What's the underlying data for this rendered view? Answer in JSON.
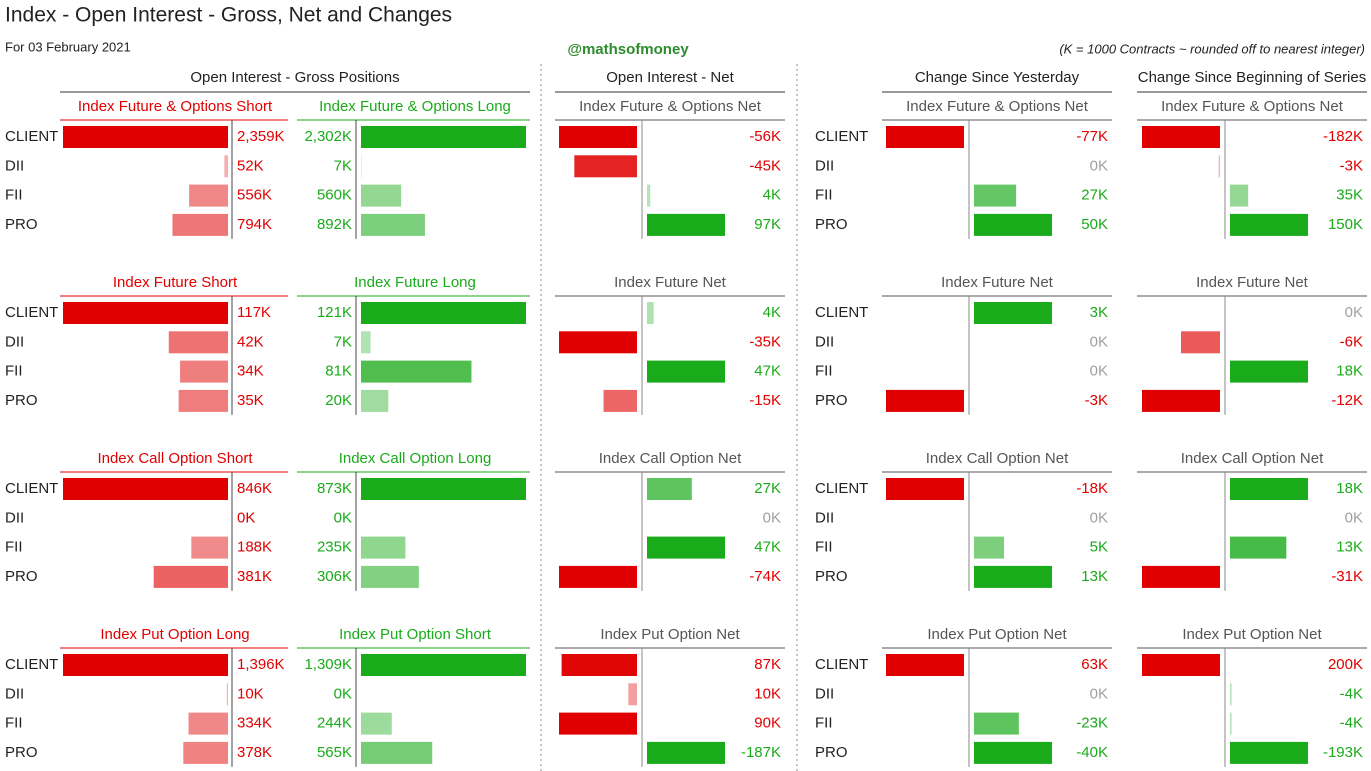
{
  "header": {
    "title": "Index - Open Interest - Gross, Net and Changes",
    "date": "For 03 February 2021",
    "handle": "@mathsofmoney",
    "note": "(K = 1000 Contracts ~ rounded off to nearest integer)"
  },
  "sections": [
    "Open Interest - Gross Positions",
    "Open Interest - Net",
    "Change Since Yesterday",
    "Change Since Beginning of Series"
  ],
  "participants": [
    "CLIENT",
    "DII",
    "FII",
    "PRO"
  ],
  "colors": {
    "negative": "#e00000",
    "positive": "#1aab1a",
    "neutral": "#a0a0a0"
  },
  "groups": [
    {
      "inverted": false,
      "short": {
        "title": "Index Future & Options Short",
        "values": [
          2359,
          52,
          556,
          794
        ],
        "value_labels": [
          "2,359K",
          "52K",
          "556K",
          "794K"
        ]
      },
      "long": {
        "title": "Index Future & Options Long",
        "values": [
          2302,
          7,
          560,
          892
        ],
        "value_labels": [
          "2,302K",
          "7K",
          "560K",
          "892K"
        ]
      },
      "net": {
        "title": "Index Future & Options Net",
        "values": [
          -56,
          -45,
          4,
          97
        ],
        "value_labels": [
          "-56K",
          "-45K",
          "4K",
          "97K"
        ]
      },
      "day": {
        "title": "Index Future & Options Net",
        "values": [
          -77,
          0,
          27,
          50
        ],
        "value_labels": [
          "-77K",
          "0K",
          "27K",
          "50K"
        ]
      },
      "series": {
        "title": "Index Future & Options Net",
        "values": [
          -182,
          -3,
          35,
          150
        ],
        "value_labels": [
          "-182K",
          "-3K",
          "35K",
          "150K"
        ]
      }
    },
    {
      "inverted": false,
      "short": {
        "title": "Index Future Short",
        "values": [
          117,
          42,
          34,
          35
        ],
        "value_labels": [
          "117K",
          "42K",
          "34K",
          "35K"
        ]
      },
      "long": {
        "title": "Index Future Long",
        "values": [
          121,
          7,
          81,
          20
        ],
        "value_labels": [
          "121K",
          "7K",
          "81K",
          "20K"
        ]
      },
      "net": {
        "title": "Index Future Net",
        "values": [
          4,
          -35,
          47,
          -15
        ],
        "value_labels": [
          "4K",
          "-35K",
          "47K",
          "-15K"
        ]
      },
      "day": {
        "title": "Index Future Net",
        "values": [
          3,
          0,
          0,
          -3
        ],
        "value_labels": [
          "3K",
          "0K",
          "0K",
          "-3K"
        ]
      },
      "series": {
        "title": "Index Future Net",
        "values": [
          0,
          -6,
          18,
          -12
        ],
        "value_labels": [
          "0K",
          "-6K",
          "18K",
          "-12K"
        ]
      }
    },
    {
      "inverted": false,
      "short": {
        "title": "Index Call Option Short",
        "values": [
          846,
          0,
          188,
          381
        ],
        "value_labels": [
          "846K",
          "0K",
          "188K",
          "381K"
        ]
      },
      "long": {
        "title": "Index Call Option Long",
        "values": [
          873,
          0,
          235,
          306
        ],
        "value_labels": [
          "873K",
          "0K",
          "235K",
          "306K"
        ]
      },
      "net": {
        "title": "Index Call Option Net",
        "values": [
          27,
          0,
          47,
          -74
        ],
        "value_labels": [
          "27K",
          "0K",
          "47K",
          "-74K"
        ]
      },
      "day": {
        "title": "Index Call Option Net",
        "values": [
          -18,
          0,
          5,
          13
        ],
        "value_labels": [
          "-18K",
          "0K",
          "5K",
          "13K"
        ]
      },
      "series": {
        "title": "Index Call Option Net",
        "values": [
          18,
          0,
          13,
          -31
        ],
        "value_labels": [
          "18K",
          "0K",
          "13K",
          "-31K"
        ]
      }
    },
    {
      "inverted": true,
      "short": {
        "title": "Index Put Option Long",
        "values": [
          1396,
          10,
          334,
          378
        ],
        "value_labels": [
          "1,396K",
          "10K",
          "334K",
          "378K"
        ]
      },
      "long": {
        "title": "Index Put Option Short",
        "values": [
          1309,
          0,
          244,
          565
        ],
        "value_labels": [
          "1,309K",
          "0K",
          "244K",
          "565K"
        ]
      },
      "net": {
        "title": "Index Put Option Net",
        "values": [
          87,
          10,
          90,
          -187
        ],
        "value_labels": [
          "87K",
          "10K",
          "90K",
          "-187K"
        ]
      },
      "day": {
        "title": "Index Put Option Net",
        "values": [
          63,
          0,
          -23,
          -40
        ],
        "value_labels": [
          "63K",
          "0K",
          "-23K",
          "-40K"
        ]
      },
      "series": {
        "title": "Index Put Option Net",
        "values": [
          200,
          -4,
          -4,
          -193
        ],
        "value_labels": [
          "200K",
          "-4K",
          "-4K",
          "-193K"
        ]
      }
    }
  ]
}
